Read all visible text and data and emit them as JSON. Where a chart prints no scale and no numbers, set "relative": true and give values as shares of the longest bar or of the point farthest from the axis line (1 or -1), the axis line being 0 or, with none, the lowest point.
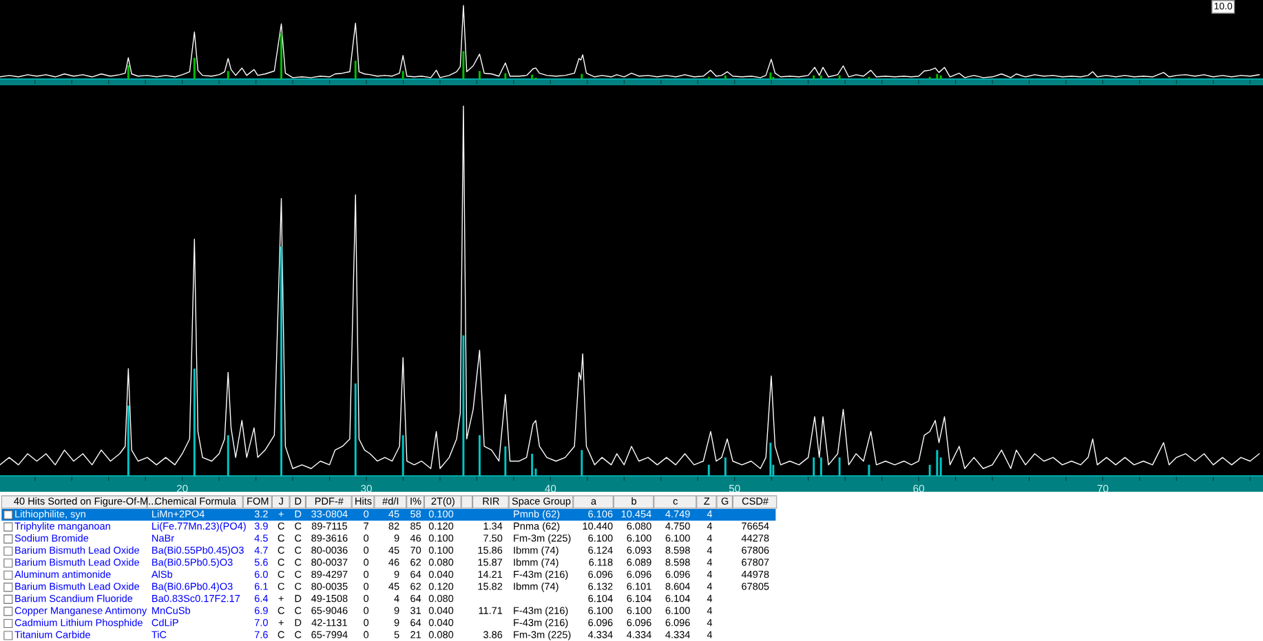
{
  "chart_data": [
    {
      "type": "line",
      "relative": true,
      "xlim": [
        10.1,
        78.7
      ],
      "tick_labels": false,
      "annotations": [
        "10.0"
      ],
      "xticks": [
        {
          "value": 12,
          "label": null
        },
        {
          "value": 14,
          "label": null
        },
        {
          "value": 16,
          "label": null
        },
        {
          "value": 18,
          "label": null
        },
        20,
        {
          "value": 22,
          "label": null
        },
        {
          "value": 24,
          "label": null
        },
        {
          "value": 26,
          "label": null
        },
        {
          "value": 28,
          "label": null
        },
        30,
        {
          "value": 32,
          "label": null
        },
        {
          "value": 34,
          "label": null
        },
        {
          "value": 36,
          "label": null
        },
        {
          "value": 38,
          "label": null
        },
        40,
        {
          "value": 42,
          "label": null
        },
        {
          "value": 44,
          "label": null
        },
        {
          "value": 46,
          "label": null
        },
        {
          "value": 48,
          "label": null
        },
        50,
        {
          "value": 52,
          "label": null
        },
        {
          "value": 54,
          "label": null
        },
        {
          "value": 56,
          "label": null
        },
        {
          "value": 58,
          "label": null
        },
        60,
        {
          "value": 62,
          "label": null
        },
        {
          "value": 64,
          "label": null
        },
        {
          "value": 66,
          "label": null
        },
        {
          "value": 68,
          "label": null
        },
        70,
        {
          "value": 72,
          "label": null
        },
        {
          "value": 74,
          "label": null
        },
        {
          "value": 76,
          "label": null
        },
        {
          "value": 78,
          "label": null
        }
      ],
      "series": [
        {
          "type": "line",
          "color": "#ffffff",
          "x": [
            10.1,
            10.6,
            11.1,
            11.6,
            12.1,
            12.6,
            13.1,
            13.6,
            14.1,
            14.6,
            15.1,
            15.6,
            16.1,
            16.6,
            16.9,
            17.07,
            17.25,
            17.6,
            18.1,
            18.6,
            19.1,
            19.6,
            20.0,
            20.4,
            20.66,
            20.85,
            21.1,
            21.6,
            22.0,
            22.3,
            22.49,
            22.65,
            22.9,
            23.24,
            23.5,
            23.9,
            24.1,
            24.5,
            25.0,
            25.38,
            25.6,
            26.0,
            26.5,
            27.0,
            27.5,
            28.0,
            28.3,
            28.7,
            29.1,
            29.41,
            29.6,
            29.9,
            30.2,
            30.6,
            31.0,
            31.4,
            31.8,
            31.99,
            32.2,
            32.6,
            33.0,
            33.5,
            33.8,
            34.0,
            34.5,
            34.9,
            35.1,
            35.27,
            35.45,
            35.8,
            36.15,
            36.4,
            36.8,
            37.2,
            37.55,
            37.8,
            38.3,
            38.7,
            38.9,
            39.05,
            39.2,
            39.4,
            39.8,
            40.3,
            40.8,
            41.3,
            41.55,
            41.65,
            41.75,
            41.95,
            42.4,
            42.8,
            43.3,
            43.6,
            44.0,
            44.4,
            44.8,
            45.3,
            45.8,
            46.3,
            46.8,
            47.3,
            47.8,
            48.3,
            48.7,
            49.0,
            49.3,
            49.6,
            49.9,
            50.4,
            50.9,
            51.4,
            51.7,
            51.99,
            52.2,
            52.5,
            53.0,
            53.5,
            54.0,
            54.35,
            54.6,
            54.8,
            55.1,
            55.6,
            55.9,
            56.2,
            56.6,
            57.0,
            57.4,
            57.7,
            58.2,
            58.7,
            59.2,
            59.6,
            60.0,
            60.3,
            60.6,
            60.9,
            61.1,
            61.4,
            61.7,
            62.2,
            62.5,
            63.0,
            63.5,
            64.0,
            64.5,
            65.0,
            65.3,
            65.8,
            66.3,
            66.8,
            67.3,
            67.8,
            68.3,
            68.8,
            69.2,
            69.45,
            69.7,
            70.2,
            70.7,
            71.2,
            71.7,
            72.2,
            72.7,
            73.3,
            73.6,
            74.0,
            74.5,
            75.0,
            75.5,
            76.0,
            76.5,
            77.0,
            77.5,
            78.0,
            78.5
          ],
          "values": [
            0.03,
            0.05,
            0.03,
            0.06,
            0.04,
            0.06,
            0.03,
            0.07,
            0.04,
            0.06,
            0.03,
            0.07,
            0.04,
            0.06,
            0.08,
            0.29,
            0.07,
            0.04,
            0.05,
            0.03,
            0.05,
            0.03,
            0.06,
            0.1,
            0.64,
            0.12,
            0.05,
            0.04,
            0.06,
            0.1,
            0.28,
            0.13,
            0.05,
            0.15,
            0.05,
            0.13,
            0.05,
            0.07,
            0.11,
            0.75,
            0.08,
            0.02,
            0.03,
            0.02,
            0.04,
            0.03,
            0.07,
            0.08,
            0.1,
            0.76,
            0.1,
            0.07,
            0.06,
            0.04,
            0.05,
            0.04,
            0.08,
            0.32,
            0.04,
            0.03,
            0.04,
            0.02,
            0.12,
            0.02,
            0.05,
            0.1,
            0.17,
            1.0,
            0.1,
            0.18,
            0.34,
            0.08,
            0.07,
            0.04,
            0.22,
            0.04,
            0.04,
            0.05,
            0.1,
            0.14,
            0.15,
            0.08,
            0.05,
            0.04,
            0.05,
            0.08,
            0.28,
            0.26,
            0.33,
            0.08,
            0.03,
            0.05,
            0.03,
            0.06,
            0.03,
            0.08,
            0.04,
            0.05,
            0.03,
            0.05,
            0.03,
            0.06,
            0.03,
            0.04,
            0.12,
            0.04,
            0.05,
            0.1,
            0.04,
            0.03,
            0.04,
            0.02,
            0.05,
            0.27,
            0.08,
            0.03,
            0.04,
            0.03,
            0.05,
            0.16,
            0.05,
            0.16,
            0.03,
            0.06,
            0.18,
            0.03,
            0.06,
            0.04,
            0.12,
            0.03,
            0.04,
            0.03,
            0.04,
            0.03,
            0.04,
            0.11,
            0.12,
            0.15,
            0.09,
            0.16,
            0.03,
            0.08,
            0.02,
            0.05,
            0.02,
            0.03,
            0.07,
            0.02,
            0.07,
            0.03,
            0.06,
            0.04,
            0.05,
            0.03,
            0.04,
            0.03,
            0.05,
            0.1,
            0.03,
            0.05,
            0.03,
            0.05,
            0.03,
            0.04,
            0.03,
            0.09,
            0.03,
            0.05,
            0.06,
            0.04,
            0.06,
            0.03,
            0.05,
            0.03,
            0.05,
            0.04,
            0.06
          ]
        },
        {
          "type": "bar",
          "color": "#00c000",
          "x": [
            17.07,
            20.66,
            22.49,
            25.38,
            29.41,
            31.99,
            35.27,
            36.15,
            37.55,
            39.0,
            39.2,
            41.7,
            48.6,
            49.5,
            51.95,
            52.1,
            54.3,
            54.7,
            55.7,
            57.3,
            60.6,
            61.0,
            61.2
          ],
          "values": [
            0.19,
            0.29,
            0.11,
            0.62,
            0.25,
            0.11,
            0.38,
            0.11,
            0.08,
            0.06,
            0.02,
            0.07,
            0.03,
            0.05,
            0.09,
            0.03,
            0.05,
            0.05,
            0.05,
            0.03,
            0.03,
            0.07,
            0.05
          ]
        }
      ]
    },
    {
      "type": "line",
      "relative": true,
      "xlim": [
        10.1,
        78.7
      ],
      "xticks": [
        {
          "value": 12,
          "label": null
        },
        {
          "value": 14,
          "label": null
        },
        {
          "value": 16,
          "label": null
        },
        {
          "value": 18,
          "label": null
        },
        20,
        {
          "value": 22,
          "label": null
        },
        {
          "value": 24,
          "label": null
        },
        {
          "value": 26,
          "label": null
        },
        {
          "value": 28,
          "label": null
        },
        30,
        {
          "value": 32,
          "label": null
        },
        {
          "value": 34,
          "label": null
        },
        {
          "value": 36,
          "label": null
        },
        {
          "value": 38,
          "label": null
        },
        40,
        {
          "value": 42,
          "label": null
        },
        {
          "value": 44,
          "label": null
        },
        {
          "value": 46,
          "label": null
        },
        {
          "value": 48,
          "label": null
        },
        50,
        {
          "value": 52,
          "label": null
        },
        {
          "value": 54,
          "label": null
        },
        {
          "value": 56,
          "label": null
        },
        {
          "value": 58,
          "label": null
        },
        60,
        {
          "value": 62,
          "label": null
        },
        {
          "value": 64,
          "label": null
        },
        {
          "value": 66,
          "label": null
        },
        {
          "value": 68,
          "label": null
        },
        70,
        {
          "value": 72,
          "label": null
        },
        {
          "value": 74,
          "label": null
        },
        {
          "value": 76,
          "label": null
        },
        {
          "value": 78,
          "label": null
        }
      ],
      "series": [
        {
          "type": "line",
          "color": "#ffffff",
          "x": [
            10.1,
            10.6,
            11.1,
            11.6,
            12.1,
            12.6,
            13.1,
            13.6,
            14.1,
            14.6,
            15.1,
            15.6,
            16.1,
            16.6,
            16.9,
            17.07,
            17.25,
            17.6,
            18.1,
            18.6,
            19.1,
            19.6,
            20.0,
            20.4,
            20.66,
            20.85,
            21.1,
            21.6,
            22.0,
            22.3,
            22.49,
            22.65,
            22.9,
            23.24,
            23.5,
            23.9,
            24.1,
            24.5,
            25.0,
            25.38,
            25.6,
            26.0,
            26.5,
            27.0,
            27.5,
            28.0,
            28.3,
            28.7,
            29.1,
            29.41,
            29.6,
            29.9,
            30.2,
            30.6,
            31.0,
            31.4,
            31.8,
            31.99,
            32.2,
            32.6,
            33.0,
            33.5,
            33.8,
            34.0,
            34.5,
            34.9,
            35.1,
            35.27,
            35.45,
            35.8,
            36.15,
            36.4,
            36.8,
            37.2,
            37.55,
            37.8,
            38.3,
            38.7,
            38.9,
            39.05,
            39.2,
            39.4,
            39.8,
            40.3,
            40.8,
            41.3,
            41.55,
            41.65,
            41.75,
            41.95,
            42.4,
            42.8,
            43.3,
            43.6,
            44.0,
            44.4,
            44.8,
            45.3,
            45.8,
            46.3,
            46.8,
            47.3,
            47.8,
            48.3,
            48.7,
            49.0,
            49.3,
            49.6,
            49.9,
            50.4,
            50.9,
            51.4,
            51.7,
            51.99,
            52.2,
            52.5,
            53.0,
            53.5,
            54.0,
            54.35,
            54.6,
            54.8,
            55.1,
            55.6,
            55.9,
            56.2,
            56.6,
            57.0,
            57.4,
            57.7,
            58.2,
            58.7,
            59.2,
            59.6,
            60.0,
            60.3,
            60.6,
            60.9,
            61.1,
            61.4,
            61.7,
            62.2,
            62.5,
            63.0,
            63.5,
            64.0,
            64.5,
            65.0,
            65.3,
            65.8,
            66.3,
            66.8,
            67.3,
            67.8,
            68.3,
            68.8,
            69.2,
            69.45,
            69.7,
            70.2,
            70.7,
            71.2,
            71.7,
            72.2,
            72.7,
            73.3,
            73.6,
            74.0,
            74.5,
            75.0,
            75.5,
            76.0,
            76.5,
            77.0,
            77.5,
            78.0,
            78.5
          ],
          "values": [
            0.03,
            0.05,
            0.03,
            0.06,
            0.04,
            0.06,
            0.03,
            0.07,
            0.04,
            0.06,
            0.03,
            0.07,
            0.04,
            0.06,
            0.08,
            0.29,
            0.07,
            0.04,
            0.05,
            0.03,
            0.05,
            0.03,
            0.06,
            0.1,
            0.64,
            0.12,
            0.05,
            0.04,
            0.06,
            0.1,
            0.28,
            0.13,
            0.05,
            0.15,
            0.05,
            0.13,
            0.05,
            0.07,
            0.11,
            0.75,
            0.08,
            0.02,
            0.03,
            0.02,
            0.04,
            0.03,
            0.07,
            0.08,
            0.1,
            0.76,
            0.1,
            0.07,
            0.06,
            0.04,
            0.05,
            0.04,
            0.08,
            0.32,
            0.04,
            0.03,
            0.04,
            0.02,
            0.12,
            0.02,
            0.05,
            0.1,
            0.17,
            1.0,
            0.1,
            0.18,
            0.34,
            0.08,
            0.07,
            0.04,
            0.22,
            0.04,
            0.04,
            0.05,
            0.1,
            0.14,
            0.15,
            0.08,
            0.05,
            0.04,
            0.05,
            0.08,
            0.28,
            0.26,
            0.33,
            0.08,
            0.03,
            0.05,
            0.03,
            0.06,
            0.03,
            0.08,
            0.04,
            0.05,
            0.03,
            0.05,
            0.03,
            0.06,
            0.03,
            0.04,
            0.12,
            0.04,
            0.05,
            0.1,
            0.04,
            0.03,
            0.04,
            0.02,
            0.05,
            0.27,
            0.08,
            0.03,
            0.04,
            0.03,
            0.05,
            0.16,
            0.05,
            0.16,
            0.03,
            0.06,
            0.18,
            0.03,
            0.06,
            0.04,
            0.12,
            0.03,
            0.04,
            0.03,
            0.04,
            0.03,
            0.04,
            0.11,
            0.12,
            0.15,
            0.09,
            0.16,
            0.03,
            0.08,
            0.02,
            0.05,
            0.02,
            0.03,
            0.07,
            0.02,
            0.07,
            0.03,
            0.06,
            0.04,
            0.05,
            0.03,
            0.04,
            0.03,
            0.05,
            0.1,
            0.03,
            0.05,
            0.03,
            0.05,
            0.03,
            0.04,
            0.03,
            0.09,
            0.03,
            0.05,
            0.06,
            0.04,
            0.06,
            0.03,
            0.05,
            0.03,
            0.05,
            0.04,
            0.06
          ]
        },
        {
          "type": "bar",
          "color": "#00c8c8",
          "x": [
            17.07,
            20.66,
            22.49,
            25.38,
            29.41,
            31.99,
            35.27,
            36.15,
            37.55,
            39.0,
            39.2,
            41.7,
            48.6,
            49.5,
            51.95,
            52.1,
            54.3,
            54.7,
            55.7,
            57.3,
            60.6,
            61.0,
            61.2
          ],
          "values": [
            0.19,
            0.29,
            0.11,
            0.62,
            0.25,
            0.11,
            0.38,
            0.11,
            0.08,
            0.06,
            0.02,
            0.07,
            0.03,
            0.05,
            0.09,
            0.03,
            0.05,
            0.05,
            0.05,
            0.03,
            0.03,
            0.07,
            0.05
          ]
        }
      ]
    },
    {
      "type": "other",
      "annotations": [
        "40 Hits Sorted on Figure-Of-M...",
        "Chemical Formula",
        "FOM",
        "J",
        "D",
        "PDF-#",
        "Hits",
        "#d/I",
        "I%",
        "2T(0)",
        null,
        "RIR",
        "Space Group",
        "a",
        "b",
        "c",
        "Z",
        "G",
        "CSD#",
        "Lithiophilite, syn",
        "LiMn+2PO4",
        "3.2",
        "+",
        "D",
        "33-0804",
        "0",
        "45",
        "58",
        "0.100",
        null,
        null,
        "Pmnb (62)",
        "6.106",
        "10.454",
        "4.749",
        "4",
        null,
        null,
        "Triphylite manganoan",
        "Li(Fe.77Mn.23)(PO4)",
        "3.9",
        "C",
        "C",
        "89-7115",
        "7",
        "82",
        "85",
        "0.120",
        null,
        "1.34",
        "Pnma (62)",
        "10.440",
        "6.080",
        "4.750",
        "4",
        null,
        "76654",
        "Sodium Bromide",
        "NaBr",
        "4.5",
        "C",
        "C",
        "89-3616",
        "0",
        "9",
        "46",
        "0.100",
        null,
        "7.50",
        "Fm-3m (225)",
        "6.100",
        "6.100",
        "6.100",
        "4",
        null,
        "44278",
        "Barium Bismuth Lead Oxide",
        "Ba(Bi0.55Pb0.45)O3",
        "4.7",
        "C",
        "C",
        "80-0036",
        "0",
        "45",
        "70",
        "0.100",
        null,
        "15.86",
        "Ibmm (74)",
        "6.124",
        "6.093",
        "8.598",
        "4",
        null,
        "67806",
        "Barium Bismuth Lead Oxide",
        "Ba(Bi0.5Pb0.5)O3",
        "5.6",
        "C",
        "C",
        "80-0037",
        "0",
        "46",
        "62",
        "0.080",
        null,
        "15.87",
        "Ibmm (74)",
        "6.118",
        "6.089",
        "8.598",
        "4",
        null,
        "67807",
        "Aluminum antimonide",
        "AlSb",
        "6.0",
        "C",
        "C",
        "89-4297",
        "0",
        "9",
        "64",
        "0.040",
        null,
        "14.21",
        "F-43m (216)",
        "6.096",
        "6.096",
        "6.096",
        "4",
        null,
        "44978",
        "Barium Bismuth Lead Oxide",
        "Ba(Bi0.6Pb0.4)O3",
        "6.1",
        "C",
        "C",
        "80-0035",
        "0",
        "45",
        "62",
        "0.120",
        null,
        "15.82",
        "Ibmm (74)",
        "6.132",
        "6.101",
        "8.604",
        "4",
        null,
        "67805",
        "Barium Scandium Fluoride",
        "Ba0.83Sc0.17F2.17",
        "6.4",
        "+",
        "D",
        "49-1508",
        "0",
        "4",
        "64",
        "0.080",
        null,
        null,
        null,
        "6.104",
        "6.104",
        "6.104",
        "4",
        null,
        null,
        "Copper Manganese Antimony",
        "MnCuSb",
        "6.9",
        "C",
        "C",
        "65-9046",
        "0",
        "9",
        "31",
        "0.040",
        null,
        "11.71",
        "F-43m (216)",
        "6.100",
        "6.100",
        "6.100",
        "4",
        null,
        null,
        "Cadmium Lithium Phosphide",
        "CdLiP",
        "7.0",
        "+",
        "D",
        "42-1131",
        "0",
        "9",
        "64",
        "0.040",
        null,
        null,
        "F-43m (216)",
        "6.096",
        "6.096",
        "6.096",
        "4",
        null,
        null,
        "Titanium Carbide",
        "TiC",
        "7.6",
        "C",
        "C",
        "65-7994",
        "0",
        "5",
        "21",
        "0.080",
        null,
        "3.86",
        "Fm-3m (225)",
        "4.334",
        "4.334",
        "4.334",
        "4",
        null,
        null
      ]
    }
  ]
}
